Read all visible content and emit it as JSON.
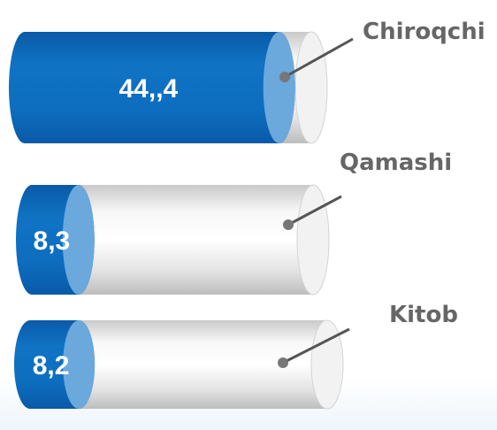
{
  "chart_data": {
    "type": "bar",
    "orientation": "horizontal",
    "style": "3d-cylinder",
    "categories": [
      "Chiroqchi",
      "Qamashi",
      "Kitob"
    ],
    "values": [
      44.4,
      8.3,
      8.2
    ],
    "value_labels": [
      "44,,4",
      "8,3",
      "8,2"
    ],
    "title": "",
    "xlabel": "",
    "ylabel": "",
    "legend": "none",
    "grid": false,
    "colors": {
      "fill": "#0d6dbf",
      "fill_dark": "#0a5aa8",
      "cap": "#6ba8dc",
      "tube_light": "#f8f8f8",
      "tube_shade": "#c9c9c9",
      "leader": "#555555",
      "label_text": "#666666",
      "value_text": "#ffffff"
    }
  }
}
